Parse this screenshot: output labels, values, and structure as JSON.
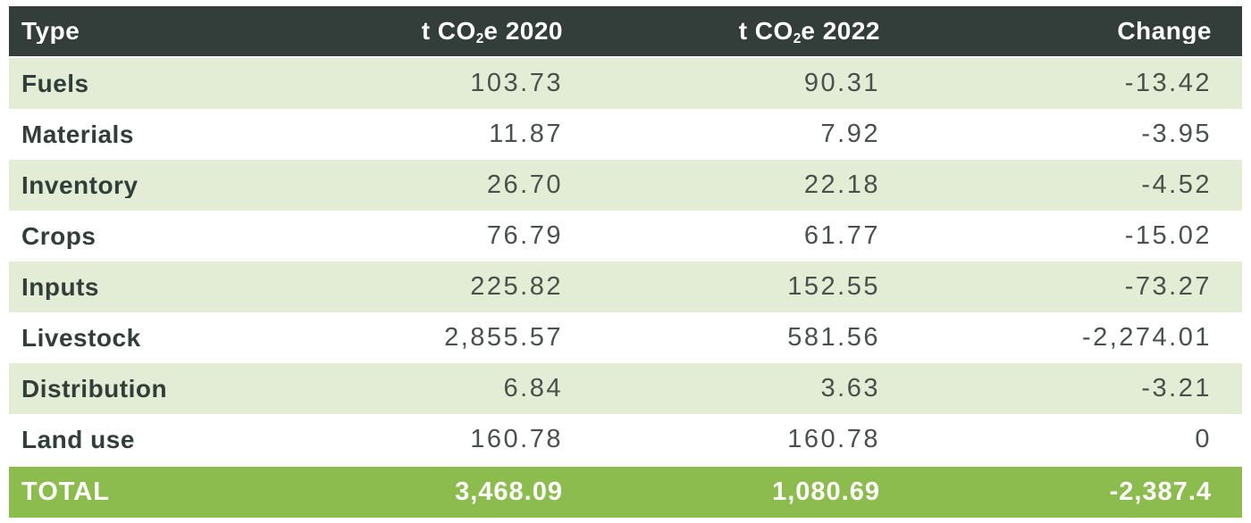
{
  "table": {
    "header": {
      "type": "Type",
      "col_2020": {
        "prefix": "t CO",
        "sub": "2",
        "suffix": "e 2020"
      },
      "col_2022": {
        "prefix": "t CO",
        "sub": "2",
        "suffix": "e 2022"
      },
      "change": "Change"
    },
    "rows": [
      {
        "label": "Fuels",
        "y2020": "103.73",
        "y2022": "90.31",
        "change": "-13.42"
      },
      {
        "label": "Materials",
        "y2020": "11.87",
        "y2022": "7.92",
        "change": "-3.95"
      },
      {
        "label": "Inventory",
        "y2020": "26.70",
        "y2022": "22.18",
        "change": "-4.52"
      },
      {
        "label": "Crops",
        "y2020": "76.79",
        "y2022": "61.77",
        "change": "-15.02"
      },
      {
        "label": "Inputs",
        "y2020": "225.82",
        "y2022": "152.55",
        "change": "-73.27"
      },
      {
        "label": "Livestock",
        "y2020": "2,855.57",
        "y2022": "581.56",
        "change": "-2,274.01"
      },
      {
        "label": "Distribution",
        "y2020": "6.84",
        "y2022": "3.63",
        "change": "-3.21"
      },
      {
        "label": "Land use",
        "y2020": "160.78",
        "y2022": "160.78",
        "change": "0"
      }
    ],
    "total": {
      "label": "TOTAL",
      "y2020": "3,468.09",
      "y2022": "1,080.69",
      "change": "-2,387.4"
    }
  },
  "chart_data": {
    "type": "table",
    "title": "CO2e emissions by type, 2020 vs 2022",
    "columns": [
      "Type",
      "t CO2e 2020",
      "t CO2e 2022",
      "Change"
    ],
    "rows": [
      [
        "Fuels",
        103.73,
        90.31,
        -13.42
      ],
      [
        "Materials",
        11.87,
        7.92,
        -3.95
      ],
      [
        "Inventory",
        26.7,
        22.18,
        -4.52
      ],
      [
        "Crops",
        76.79,
        61.77,
        -15.02
      ],
      [
        "Inputs",
        225.82,
        152.55,
        -73.27
      ],
      [
        "Livestock",
        2855.57,
        581.56,
        -2274.01
      ],
      [
        "Distribution",
        6.84,
        3.63,
        -3.21
      ],
      [
        "Land use",
        160.78,
        160.78,
        0
      ]
    ],
    "total_row": [
      "TOTAL",
      3468.09,
      1080.69,
      -2387.4
    ]
  },
  "colors": {
    "header_bg": "#333e3b",
    "header_text": "#ffffff",
    "row_alt_bg": "#e3ecd4",
    "row_plain_bg": "#ffffff",
    "label_text": "#333e3b",
    "number_text": "#4a514d",
    "total_bg": "#8cbb4e",
    "total_text": "#ffffff"
  }
}
